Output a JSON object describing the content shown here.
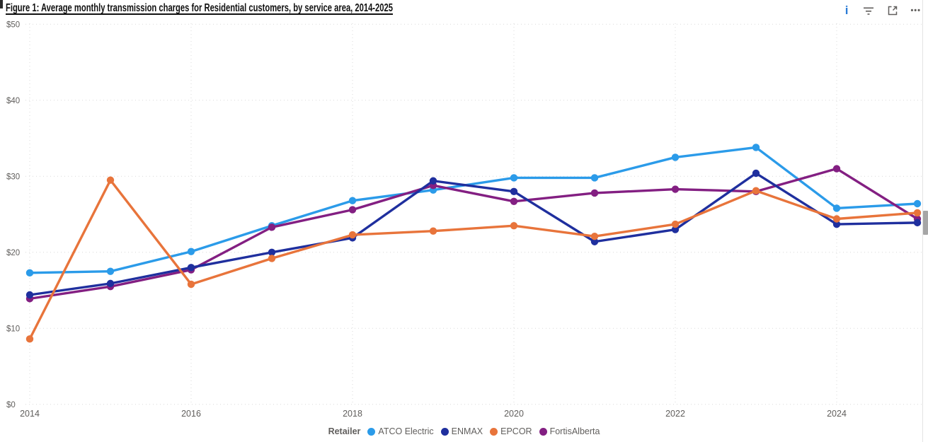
{
  "header": {
    "title": "Figure 1: Average monthly transmission charges for Residential customers, by service area, 2014-2025",
    "icons": {
      "info": "i",
      "more": "•••"
    }
  },
  "chart_data": {
    "type": "line",
    "title": "Figure 1: Average monthly transmission charges for Residential customers, by service area, 2014-2025",
    "x": [
      2014,
      2015,
      2016,
      2017,
      2018,
      2019,
      2020,
      2021,
      2022,
      2023,
      2024,
      2025
    ],
    "x_ticks": [
      {
        "year": 2014,
        "label": "2014"
      },
      {
        "year": 2016,
        "label": "2016"
      },
      {
        "year": 2018,
        "label": "2018"
      },
      {
        "year": 2020,
        "label": "2020"
      },
      {
        "year": 2022,
        "label": "2022"
      },
      {
        "year": 2024,
        "label": "2024"
      }
    ],
    "y_ticks": [
      {
        "value": 0,
        "label": "$0"
      },
      {
        "value": 10,
        "label": "$10"
      },
      {
        "value": 20,
        "label": "$20"
      },
      {
        "value": 30,
        "label": "$30"
      },
      {
        "value": 40,
        "label": "$40"
      },
      {
        "value": 50,
        "label": "$50"
      }
    ],
    "ylim": [
      0,
      50
    ],
    "grid": "dotted",
    "grid_color": "#d9d9d9",
    "tick_label_color": "#605e5c",
    "legend_position": "bottom-center",
    "legend_title": "Retailer",
    "series": [
      {
        "name": "ATCO Electric",
        "color": "#2b9be9",
        "values": [
          17.3,
          17.5,
          20.1,
          23.5,
          26.8,
          28.2,
          29.8,
          29.8,
          32.5,
          33.8,
          25.8,
          26.4
        ]
      },
      {
        "name": "ENMAX",
        "color": "#1f2f9e",
        "values": [
          14.4,
          15.9,
          18.0,
          20.0,
          21.9,
          29.4,
          28.0,
          21.4,
          23.0,
          30.4,
          23.7,
          23.9
        ]
      },
      {
        "name": "EPCOR",
        "color": "#e8743b",
        "values": [
          8.6,
          29.5,
          15.8,
          19.2,
          22.3,
          22.8,
          23.5,
          22.1,
          23.7,
          28.1,
          24.4,
          25.2
        ]
      },
      {
        "name": "FortisAlberta",
        "color": "#831f82",
        "values": [
          13.9,
          15.5,
          17.7,
          23.3,
          25.6,
          28.8,
          26.7,
          27.8,
          28.3,
          28.0,
          31.0,
          24.4
        ]
      }
    ],
    "draw_order": [
      "ATCO Electric",
      "FortisAlberta",
      "ENMAX",
      "EPCOR"
    ]
  }
}
